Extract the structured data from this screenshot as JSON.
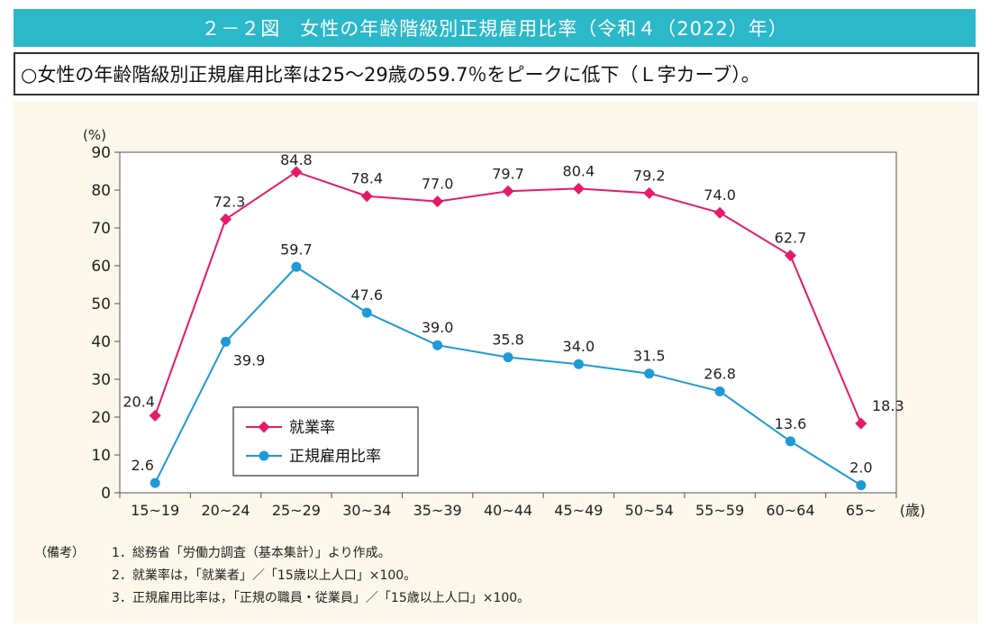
{
  "title": "２－２図　女性の年齢階級別正規雇用比率（令和４（2022）年）",
  "summary": "○女性の年齢階級別正規雇用比率は25～29歳の59.7％をピークに低下（Ｌ字カーブ）。",
  "chart_data": {
    "type": "line",
    "categories": [
      "15~19",
      "20~24",
      "25~29",
      "30~34",
      "35~39",
      "40~44",
      "45~49",
      "50~54",
      "55~59",
      "60~64",
      "65~"
    ],
    "x_unit": "(歳)",
    "y_unit": "(%)",
    "ylim": [
      0,
      90
    ],
    "yticks": [
      0,
      10,
      20,
      30,
      40,
      50,
      60,
      70,
      80,
      90
    ],
    "grid": false,
    "legend_position": "lower-left",
    "series": [
      {
        "name": "就業率",
        "color": "#e6196a",
        "marker": "diamond",
        "values": [
          20.4,
          72.3,
          84.8,
          78.4,
          77.0,
          79.7,
          80.4,
          79.2,
          74.0,
          62.7,
          18.3
        ],
        "labels": [
          "20.4",
          "72.3",
          "84.8",
          "78.4",
          "77.0",
          "79.7",
          "80.4",
          "79.2",
          "74.0",
          "62.7",
          "18.3"
        ]
      },
      {
        "name": "正規雇用比率",
        "color": "#1f9ad6",
        "marker": "circle",
        "values": [
          2.6,
          39.9,
          59.7,
          47.6,
          39.0,
          35.8,
          34.0,
          31.5,
          26.8,
          13.6,
          2.0
        ],
        "labels": [
          "2.6",
          "39.9",
          "59.7",
          "47.6",
          "39.0",
          "35.8",
          "34.0",
          "31.5",
          "26.8",
          "13.6",
          "2.0"
        ]
      }
    ]
  },
  "notes": {
    "heading": "（備考）",
    "items": [
      "1．総務省「労働力調査（基本集計）」より作成。",
      "2．就業率は，「就業者」／「15歳以上人口」×100。",
      "3．正規雇用比率は，「正規の職員・従業員」／「15歳以上人口」×100。"
    ]
  }
}
